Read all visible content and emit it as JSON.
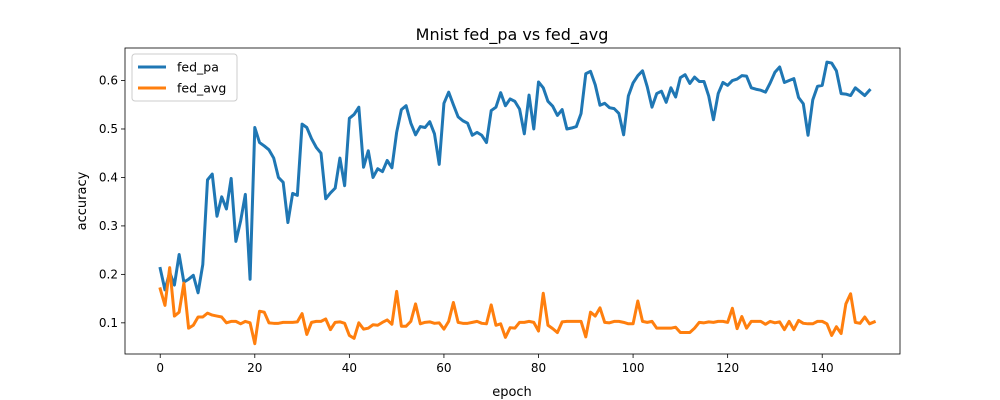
{
  "chart_data": {
    "type": "line",
    "title": "Mnist fed_pa vs fed_avg",
    "xlabel": "epoch",
    "ylabel": "accuracy",
    "xlim": [
      -7.45,
      156.45
    ],
    "ylim": [
      0.0357,
      0.6671
    ],
    "xticks": [
      0,
      20,
      40,
      60,
      80,
      100,
      120,
      140
    ],
    "yticks": [
      0.1,
      0.2,
      0.3,
      0.4,
      0.5,
      0.6
    ],
    "x_tick_labels": [
      "0",
      "20",
      "40",
      "60",
      "80",
      "100",
      "120",
      "140"
    ],
    "y_tick_labels": [
      "0.1",
      "0.2",
      "0.3",
      "0.4",
      "0.5",
      "0.6"
    ],
    "grid": false,
    "legend_position": "top-left",
    "series": [
      {
        "name": "fed_pa",
        "color": "#1f77b4",
        "values": [
          0.212,
          0.168,
          0.204,
          0.178,
          0.241,
          0.184,
          0.19,
          0.198,
          0.162,
          0.22,
          0.395,
          0.407,
          0.32,
          0.36,
          0.335,
          0.398,
          0.268,
          0.31,
          0.365,
          0.19,
          0.503,
          0.472,
          0.465,
          0.457,
          0.44,
          0.4,
          0.39,
          0.307,
          0.367,
          0.363,
          0.51,
          0.503,
          0.48,
          0.462,
          0.45,
          0.356,
          0.368,
          0.378,
          0.44,
          0.383,
          0.522,
          0.53,
          0.545,
          0.421,
          0.455,
          0.4,
          0.418,
          0.412,
          0.435,
          0.42,
          0.493,
          0.54,
          0.548,
          0.512,
          0.488,
          0.505,
          0.503,
          0.515,
          0.49,
          0.427,
          0.553,
          0.576,
          0.55,
          0.525,
          0.517,
          0.512,
          0.487,
          0.493,
          0.487,
          0.472,
          0.538,
          0.545,
          0.575,
          0.548,
          0.562,
          0.557,
          0.541,
          0.49,
          0.57,
          0.5,
          0.597,
          0.585,
          0.557,
          0.547,
          0.528,
          0.54,
          0.5,
          0.502,
          0.505,
          0.532,
          0.614,
          0.619,
          0.591,
          0.549,
          0.553,
          0.544,
          0.542,
          0.532,
          0.488,
          0.568,
          0.595,
          0.61,
          0.62,
          0.587,
          0.545,
          0.573,
          0.578,
          0.555,
          0.585,
          0.566,
          0.606,
          0.612,
          0.594,
          0.607,
          0.598,
          0.598,
          0.568,
          0.519,
          0.573,
          0.596,
          0.59,
          0.6,
          0.603,
          0.61,
          0.609,
          0.585,
          0.582,
          0.58,
          0.576,
          0.595,
          0.617,
          0.628,
          0.596,
          0.6,
          0.604,
          0.565,
          0.552,
          0.487,
          0.56,
          0.588,
          0.59,
          0.638,
          0.636,
          0.62,
          0.573,
          0.572,
          0.569,
          0.585,
          0.577,
          0.569,
          0.58
        ]
      },
      {
        "name": "fed_avg",
        "color": "#ff7f0e",
        "values": [
          0.17,
          0.136,
          0.214,
          0.114,
          0.122,
          0.182,
          0.089,
          0.095,
          0.112,
          0.112,
          0.12,
          0.116,
          0.114,
          0.112,
          0.1,
          0.103,
          0.103,
          0.098,
          0.103,
          0.1,
          0.057,
          0.124,
          0.122,
          0.1,
          0.099,
          0.099,
          0.101,
          0.101,
          0.101,
          0.102,
          0.119,
          0.076,
          0.101,
          0.103,
          0.103,
          0.108,
          0.086,
          0.101,
          0.102,
          0.099,
          0.074,
          0.068,
          0.1,
          0.087,
          0.089,
          0.096,
          0.095,
          0.101,
          0.106,
          0.097,
          0.165,
          0.093,
          0.093,
          0.103,
          0.139,
          0.098,
          0.101,
          0.102,
          0.099,
          0.1,
          0.087,
          0.103,
          0.142,
          0.101,
          0.099,
          0.099,
          0.101,
          0.103,
          0.099,
          0.098,
          0.137,
          0.095,
          0.098,
          0.07,
          0.09,
          0.089,
          0.101,
          0.101,
          0.103,
          0.101,
          0.083,
          0.161,
          0.095,
          0.088,
          0.08,
          0.102,
          0.103,
          0.103,
          0.103,
          0.103,
          0.071,
          0.122,
          0.114,
          0.131,
          0.101,
          0.1,
          0.103,
          0.103,
          0.101,
          0.098,
          0.098,
          0.145,
          0.103,
          0.101,
          0.103,
          0.089,
          0.089,
          0.089,
          0.089,
          0.091,
          0.08,
          0.08,
          0.08,
          0.089,
          0.101,
          0.1,
          0.102,
          0.101,
          0.103,
          0.103,
          0.101,
          0.13,
          0.088,
          0.113,
          0.089,
          0.103,
          0.103,
          0.103,
          0.097,
          0.103,
          0.1,
          0.102,
          0.086,
          0.103,
          0.086,
          0.105,
          0.099,
          0.098,
          0.098,
          0.103,
          0.103,
          0.098,
          0.074,
          0.092,
          0.078,
          0.139,
          0.16,
          0.101,
          0.099,
          0.112,
          0.098,
          0.102
        ]
      }
    ]
  }
}
